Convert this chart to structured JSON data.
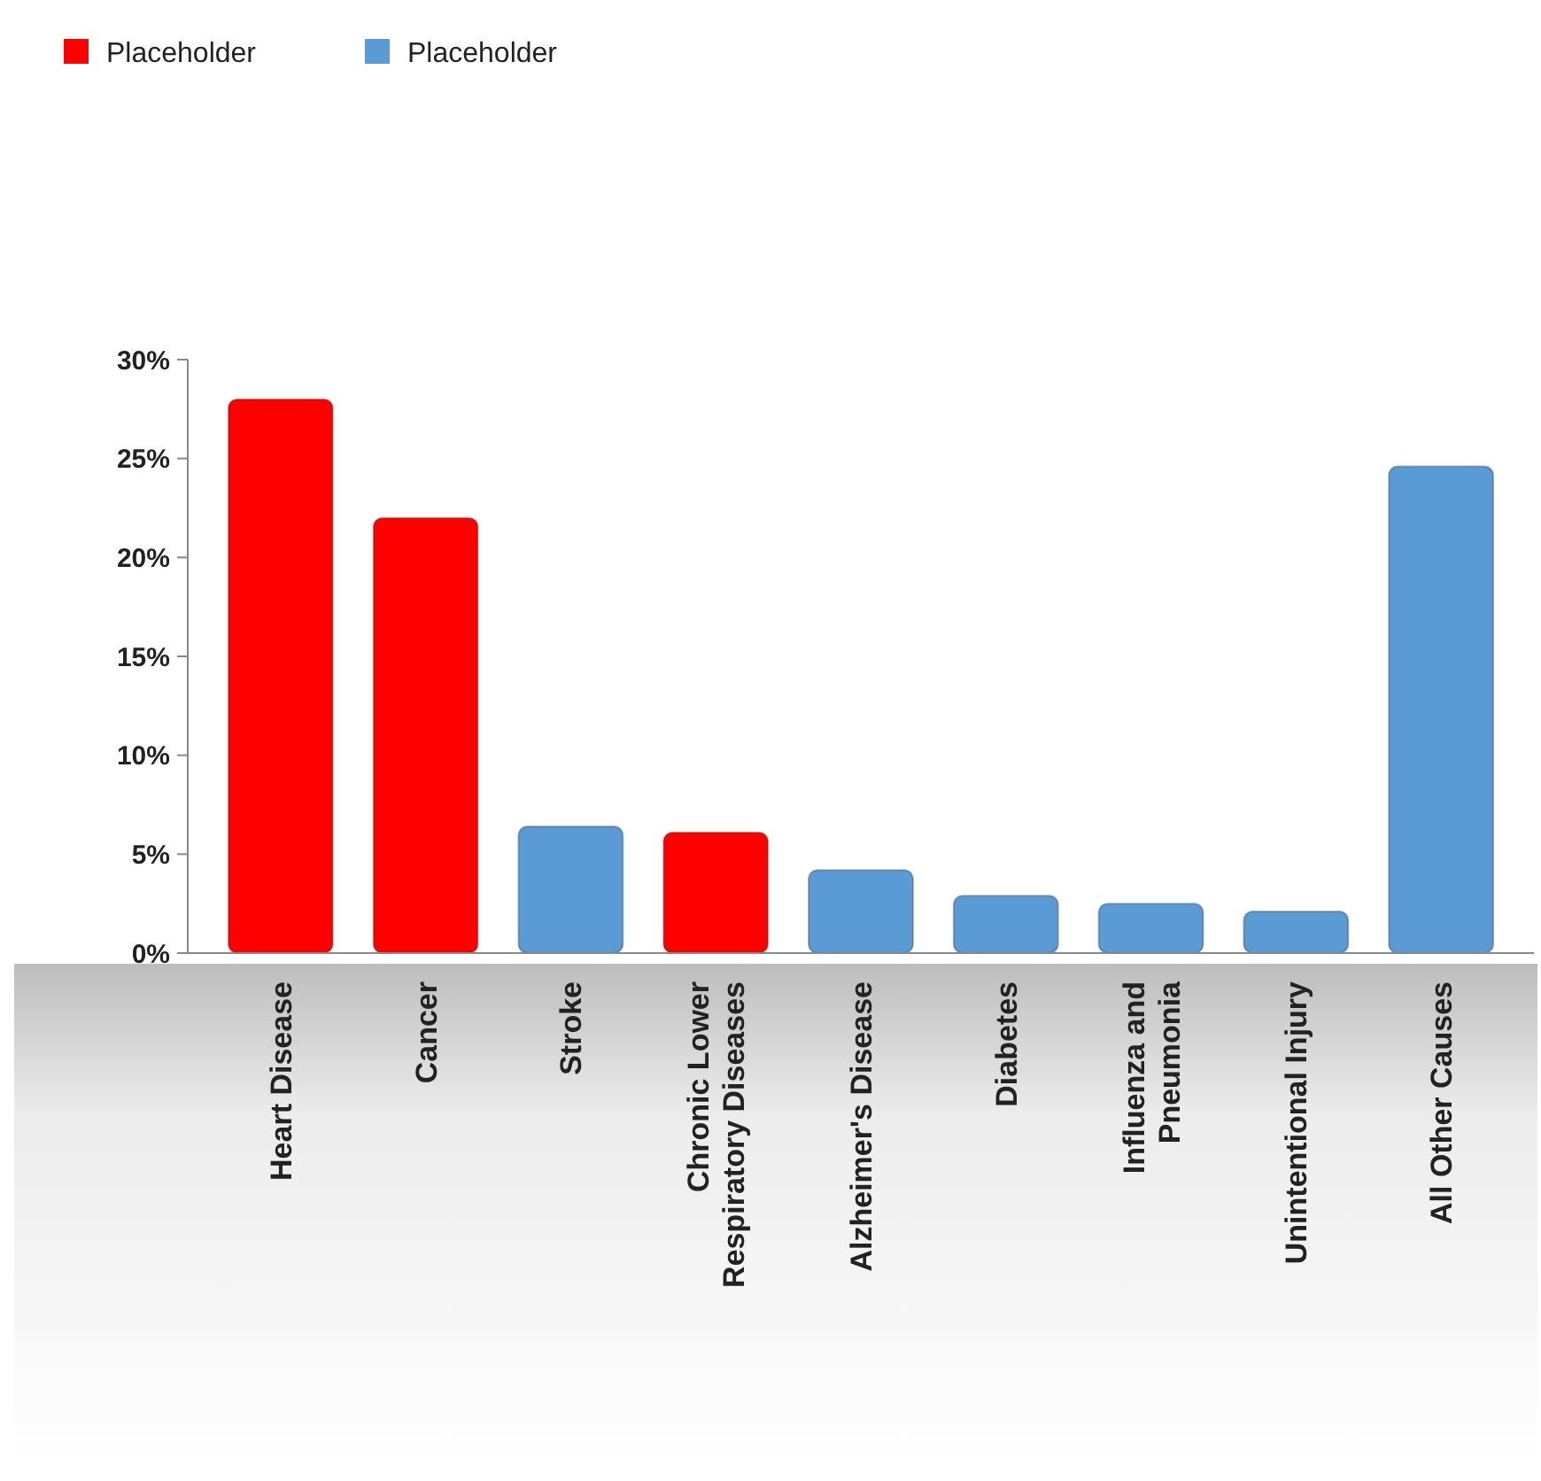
{
  "chart_data": {
    "type": "bar",
    "categories": [
      "Heart Disease",
      "Cancer",
      "Stroke",
      "Chronic Lower Respiratory Diseases",
      "Alzheimer's Disease",
      "Diabetes",
      "Influenza and Pneumonia",
      "Unintentional Injury",
      "All Other Causes"
    ],
    "series": [
      {
        "name": "Placeholder",
        "color": "#ff0000",
        "values": [
          28,
          22,
          null,
          6.1,
          null,
          null,
          null,
          null,
          null
        ]
      },
      {
        "name": "Placeholder",
        "color": "#5b9bd5",
        "values": [
          null,
          null,
          6.4,
          null,
          4.2,
          2.9,
          2.5,
          2.1,
          24.6
        ]
      }
    ],
    "ylim": [
      0,
      30
    ],
    "yticks": [
      {
        "value": 0,
        "label": "0%"
      },
      {
        "value": 5,
        "label": "5%"
      },
      {
        "value": 10,
        "label": "10%"
      },
      {
        "value": 15,
        "label": "15%"
      },
      {
        "value": 20,
        "label": "20%"
      },
      {
        "value": 25,
        "label": "25%"
      },
      {
        "value": 30,
        "label": "30%"
      }
    ],
    "legend": "top left"
  }
}
